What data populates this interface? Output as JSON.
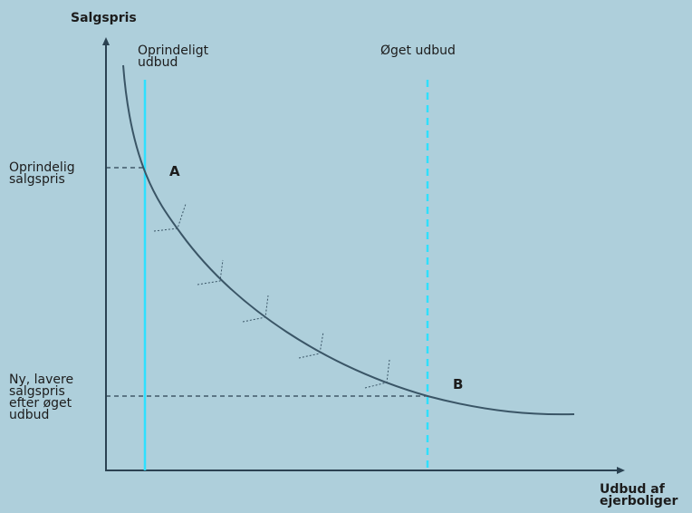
{
  "axes": {
    "y_title": "Salgspris",
    "x_title": "Udbud af\nejerboliger"
  },
  "supply_lines": {
    "original": "Oprindeligt\nudbud",
    "increased": "Øget udbud"
  },
  "price_levels": {
    "original": "Oprindelig\nsalgspris",
    "new": "Ny, lavere\nsalgspris\nefter øget\nudbud"
  },
  "points": {
    "a": "A",
    "b": "B"
  },
  "colors": {
    "background": "#aecfdb",
    "axis": "#2b4252",
    "curve": "#3a5566",
    "supply_line": "#2ee0ff",
    "guide": "#2b4252"
  }
}
